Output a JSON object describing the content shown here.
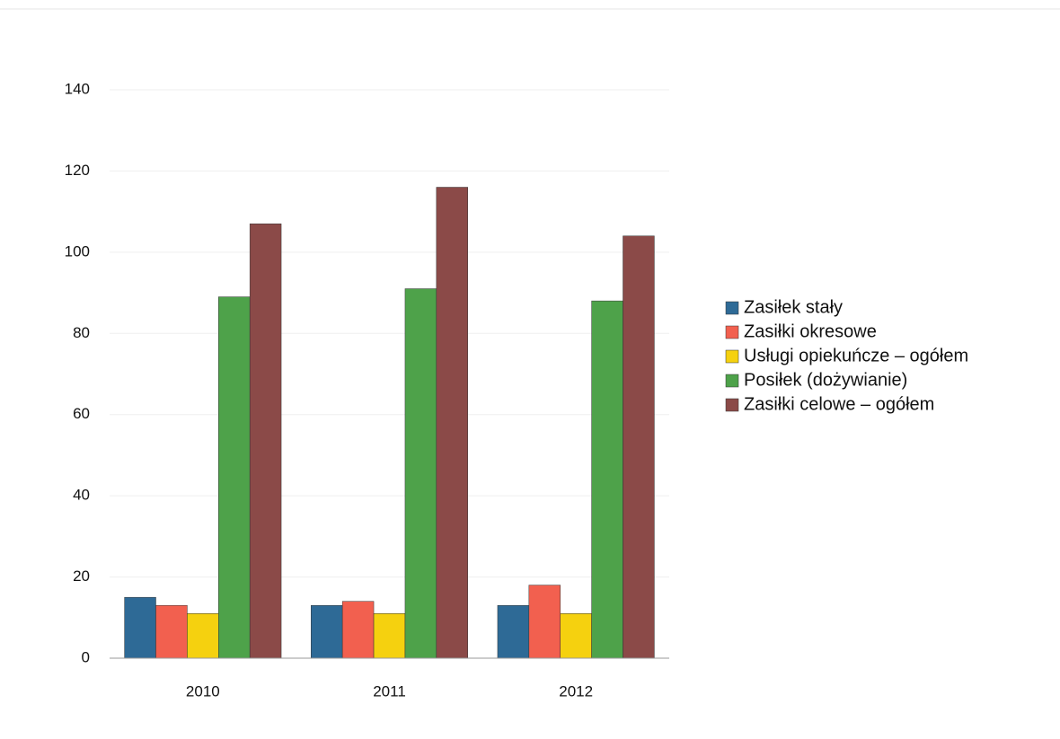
{
  "chart_data": {
    "type": "bar",
    "categories": [
      "2010",
      "2011",
      "2012"
    ],
    "series": [
      {
        "name": "Zasiłek stały",
        "color": "#2e6a96",
        "values": [
          15,
          13,
          13
        ]
      },
      {
        "name": "Zasiłki okresowe",
        "color": "#f2604f",
        "values": [
          13,
          14,
          18
        ]
      },
      {
        "name": "Usługi opiekuńcze – ogółem",
        "color": "#f5d10f",
        "values": [
          11,
          11,
          11
        ]
      },
      {
        "name": "Posiłek (dożywianie)",
        "color": "#4ea24a",
        "values": [
          89,
          91,
          88
        ]
      },
      {
        "name": "Zasiłki celowe – ogółem",
        "color": "#8b4a48",
        "values": [
          107,
          116,
          104
        ]
      }
    ],
    "ylim": [
      0,
      140
    ],
    "yticks": [
      0,
      20,
      40,
      60,
      80,
      100,
      120,
      140
    ],
    "grid": true,
    "legend": "right"
  }
}
